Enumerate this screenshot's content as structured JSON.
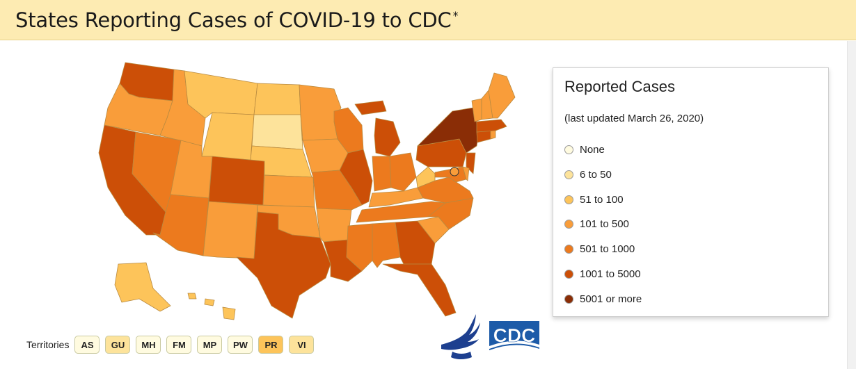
{
  "header": {
    "title": "States Reporting Cases of COVID-19 to CDC",
    "asterisk": "*"
  },
  "legend": {
    "title": "Reported Cases",
    "subtitle": "(last updated March 26, 2020)",
    "items": [
      {
        "label": "None",
        "color": "#fffbe0"
      },
      {
        "label": "6 to 50",
        "color": "#fde39b"
      },
      {
        "label": "51 to 100",
        "color": "#fdc45a"
      },
      {
        "label": "101 to 500",
        "color": "#f99d3a"
      },
      {
        "label": "501 to 1000",
        "color": "#ec7a1e"
      },
      {
        "label": "1001 to 5000",
        "color": "#cc4f07"
      },
      {
        "label": "5001 or more",
        "color": "#8a2d06"
      }
    ]
  },
  "territories": {
    "label": "Territories",
    "items": [
      {
        "code": "AS",
        "color": "#fffbe0"
      },
      {
        "code": "GU",
        "color": "#fde39b"
      },
      {
        "code": "MH",
        "color": "#fffbe0"
      },
      {
        "code": "FM",
        "color": "#fffbe0"
      },
      {
        "code": "MP",
        "color": "#fffbe0"
      },
      {
        "code": "PW",
        "color": "#fffbe0"
      },
      {
        "code": "PR",
        "color": "#fdc45a"
      },
      {
        "code": "VI",
        "color": "#fde39b"
      }
    ]
  },
  "logos": {
    "cdc_text": "CDC"
  },
  "map": {
    "states": [
      {
        "id": "WA",
        "color": "#cc4f07"
      },
      {
        "id": "OR",
        "color": "#f99d3a"
      },
      {
        "id": "CA",
        "color": "#cc4f07"
      },
      {
        "id": "ID",
        "color": "#f99d3a"
      },
      {
        "id": "NV",
        "color": "#ec7a1e"
      },
      {
        "id": "MT",
        "color": "#fdc45a"
      },
      {
        "id": "WY",
        "color": "#fdc45a"
      },
      {
        "id": "UT",
        "color": "#f99d3a"
      },
      {
        "id": "AZ",
        "color": "#ec7a1e"
      },
      {
        "id": "CO",
        "color": "#cc4f07"
      },
      {
        "id": "NM",
        "color": "#f99d3a"
      },
      {
        "id": "ND",
        "color": "#fdc45a"
      },
      {
        "id": "SD",
        "color": "#fde39b"
      },
      {
        "id": "NE",
        "color": "#fdc45a"
      },
      {
        "id": "KS",
        "color": "#f99d3a"
      },
      {
        "id": "OK",
        "color": "#f99d3a"
      },
      {
        "id": "TX",
        "color": "#cc4f07"
      },
      {
        "id": "MN",
        "color": "#f99d3a"
      },
      {
        "id": "IA",
        "color": "#f99d3a"
      },
      {
        "id": "MO",
        "color": "#ec7a1e"
      },
      {
        "id": "AR",
        "color": "#f99d3a"
      },
      {
        "id": "LA",
        "color": "#cc4f07"
      },
      {
        "id": "WI",
        "color": "#ec7a1e"
      },
      {
        "id": "IL",
        "color": "#cc4f07"
      },
      {
        "id": "MI",
        "color": "#cc4f07"
      },
      {
        "id": "IN",
        "color": "#ec7a1e"
      },
      {
        "id": "OH",
        "color": "#ec7a1e"
      },
      {
        "id": "KY",
        "color": "#f99d3a"
      },
      {
        "id": "TN",
        "color": "#ec7a1e"
      },
      {
        "id": "MS",
        "color": "#ec7a1e"
      },
      {
        "id": "AL",
        "color": "#ec7a1e"
      },
      {
        "id": "GA",
        "color": "#cc4f07"
      },
      {
        "id": "FL",
        "color": "#cc4f07"
      },
      {
        "id": "SC",
        "color": "#f99d3a"
      },
      {
        "id": "NC",
        "color": "#ec7a1e"
      },
      {
        "id": "VA",
        "color": "#ec7a1e"
      },
      {
        "id": "WV",
        "color": "#fdc45a"
      },
      {
        "id": "PA",
        "color": "#cc4f07"
      },
      {
        "id": "NY",
        "color": "#8a2d06"
      },
      {
        "id": "NJ",
        "color": "#cc4f07"
      },
      {
        "id": "MD",
        "color": "#ec7a1e"
      },
      {
        "id": "DE",
        "color": "#f99d3a"
      },
      {
        "id": "CT",
        "color": "#cc4f07"
      },
      {
        "id": "MA",
        "color": "#cc4f07"
      },
      {
        "id": "VT",
        "color": "#f99d3a"
      },
      {
        "id": "NH",
        "color": "#f99d3a"
      },
      {
        "id": "ME",
        "color": "#f99d3a"
      },
      {
        "id": "RI",
        "color": "#f99d3a"
      },
      {
        "id": "AK",
        "color": "#fdc45a"
      },
      {
        "id": "HI",
        "color": "#fdc45a"
      },
      {
        "id": "DC",
        "color": "#f99d3a"
      }
    ]
  }
}
